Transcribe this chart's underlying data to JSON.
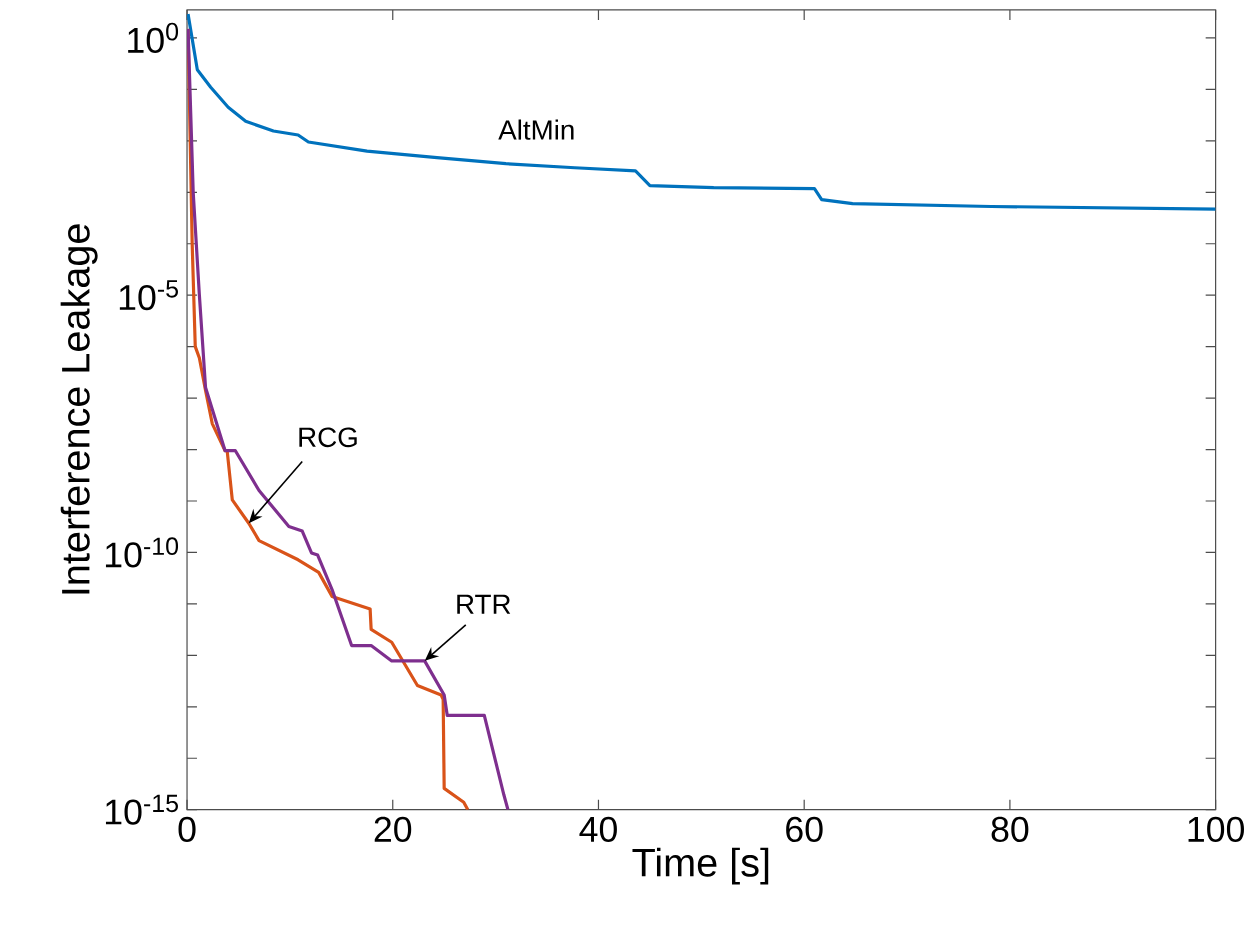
{
  "chart_data": {
    "type": "line",
    "xlabel": "Time [s]",
    "ylabel": "Interference Leakage",
    "xlim": [
      0,
      100
    ],
    "ylim": [
      1e-15,
      3.5
    ],
    "log": "y",
    "grid": false,
    "legend": false,
    "xticks": [
      0,
      20,
      40,
      60,
      80,
      100
    ],
    "yticks": [
      {
        "value": 1,
        "label": "10$^{0}$"
      },
      {
        "value": 0.1,
        "label": null
      },
      {
        "value": 0.01,
        "label": null
      },
      {
        "value": 0.001,
        "label": null
      },
      {
        "value": 0.0001,
        "label": null
      },
      {
        "value": 1e-05,
        "label": "10$^{-5}$"
      },
      {
        "value": 1e-06,
        "label": null
      },
      {
        "value": 1e-07,
        "label": null
      },
      {
        "value": 1e-08,
        "label": null
      },
      {
        "value": 1e-09,
        "label": null
      },
      {
        "value": 1e-10,
        "label": "10$^{-10}$"
      },
      {
        "value": 1e-11,
        "label": null
      },
      {
        "value": 1e-12,
        "label": null
      },
      {
        "value": 1e-13,
        "label": null
      },
      {
        "value": 1e-14,
        "label": null
      },
      {
        "value": 1e-15,
        "label": "10$^{-15}$"
      }
    ],
    "annotations": [
      {
        "text": "RCG",
        "x": 6.0,
        "y": 3.7e-10
      },
      {
        "text": "RTR",
        "x": 23.1,
        "y": 7.8e-13
      }
    ],
    "series": [
      {
        "name": "AltMin",
        "color": "#0072bd",
        "x": [
          0.1,
          1.0,
          2.3,
          4.0,
          5.7,
          8.4,
          10.8,
          11.8,
          17.5,
          24.3,
          31.0,
          37.7,
          43.6,
          45.0,
          51.2,
          61.0,
          61.7,
          64.7,
          78.2,
          100
        ],
        "values": [
          2.9,
          0.24,
          0.11,
          0.045,
          0.024,
          0.0155,
          0.013,
          0.0095,
          0.0063,
          0.0047,
          0.0036,
          0.003,
          0.0026,
          0.00135,
          0.00123,
          0.00118,
          0.00072,
          0.0006,
          0.00053,
          0.00047
        ]
      },
      {
        "color": "#d95319",
        "x": [
          0.1,
          0.5,
          0.8,
          1.2,
          1.8,
          2.45,
          3.7,
          3.9,
          4.4,
          6.0,
          7.0,
          10.8,
          12.8,
          14.1,
          17.8,
          17.9,
          19.9,
          22.4,
          24.7,
          24.9,
          25.0,
          26.9,
          27.3
        ],
        "values": [
          1.5,
          0.0001,
          1e-06,
          6e-07,
          1.4e-07,
          3.2e-08,
          9.5e-09,
          9.5e-09,
          1.05e-09,
          3.7e-10,
          1.7e-10,
          7.2e-11,
          4.1e-11,
          1.4e-11,
          8e-12,
          3.2e-12,
          1.8e-12,
          2.6e-13,
          1.7e-13,
          1.4e-13,
          2.6e-15,
          1.4e-15,
          1e-15
        ]
      },
      {
        "color": "#7e2f8e",
        "x": [
          0.1,
          0.6,
          1.2,
          1.8,
          3.7,
          4.7,
          7.0,
          9.9,
          11.2,
          12.1,
          12.7,
          14.1,
          16.0,
          17.9,
          19.9,
          23.1,
          25.0,
          25.3,
          28.9,
          30.8,
          31.2
        ],
        "values": [
          1.5,
          0.001,
          1e-05,
          1.6e-07,
          9.5e-09,
          9.5e-09,
          1.6e-09,
          3.2e-10,
          2.6e-10,
          9.8e-11,
          8.9e-11,
          1.9e-11,
          1.55e-12,
          1.55e-12,
          7.8e-13,
          7.8e-13,
          1.7e-13,
          6.8e-14,
          6.8e-14,
          1.95e-15,
          1e-15
        ]
      }
    ]
  }
}
